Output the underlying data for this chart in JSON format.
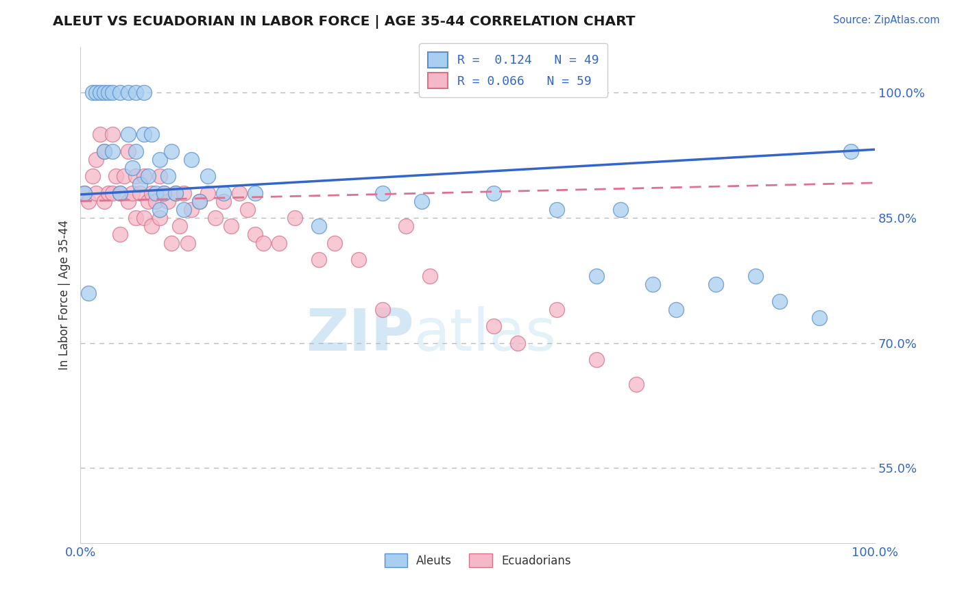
{
  "title": "ALEUT VS ECUADORIAN IN LABOR FORCE | AGE 35-44 CORRELATION CHART",
  "source_text": "Source: ZipAtlas.com",
  "ylabel": "In Labor Force | Age 35-44",
  "watermark_zip": "ZIP",
  "watermark_atlas": "atlas",
  "xmin": 0.0,
  "xmax": 1.0,
  "ymin": 0.46,
  "ymax": 1.055,
  "yticks": [
    0.55,
    0.7,
    0.85,
    1.0
  ],
  "ytick_labels": [
    "55.0%",
    "70.0%",
    "85.0%",
    "100.0%"
  ],
  "xtick_labels": [
    "0.0%",
    "100.0%"
  ],
  "aleut_R": 0.124,
  "aleut_N": 49,
  "ecuadorian_R": 0.066,
  "ecuadorian_N": 59,
  "aleut_color": "#A8CEF0",
  "ecuadorian_color": "#F5B8C8",
  "aleut_edge_color": "#5A8FCC",
  "ecuadorian_edge_color": "#D8708A",
  "aleut_line_color": "#3366CC",
  "ecuadorian_line_color": "#E07090",
  "text_blue": "#3366CC",
  "aleut_line_start_y": 0.878,
  "aleut_line_end_y": 0.932,
  "ecu_line_start_y": 0.87,
  "ecu_line_end_y": 0.892,
  "aleut_x": [
    0.005,
    0.01,
    0.015,
    0.02,
    0.025,
    0.03,
    0.03,
    0.035,
    0.04,
    0.04,
    0.05,
    0.05,
    0.06,
    0.06,
    0.065,
    0.07,
    0.07,
    0.075,
    0.08,
    0.08,
    0.085,
    0.09,
    0.095,
    0.1,
    0.1,
    0.105,
    0.11,
    0.115,
    0.12,
    0.13,
    0.14,
    0.15,
    0.16,
    0.18,
    0.22,
    0.3,
    0.38,
    0.43,
    0.52,
    0.6,
    0.65,
    0.68,
    0.72,
    0.75,
    0.8,
    0.85,
    0.88,
    0.93,
    0.97
  ],
  "aleut_y": [
    0.88,
    0.76,
    1.0,
    1.0,
    1.0,
    1.0,
    0.93,
    1.0,
    1.0,
    0.93,
    1.0,
    0.88,
    1.0,
    0.95,
    0.91,
    1.0,
    0.93,
    0.89,
    1.0,
    0.95,
    0.9,
    0.95,
    0.88,
    0.92,
    0.86,
    0.88,
    0.9,
    0.93,
    0.88,
    0.86,
    0.92,
    0.87,
    0.9,
    0.88,
    0.88,
    0.84,
    0.88,
    0.87,
    0.88,
    0.86,
    0.78,
    0.86,
    0.77,
    0.74,
    0.77,
    0.78,
    0.75,
    0.73,
    0.93
  ],
  "ecuadorian_x": [
    0.005,
    0.01,
    0.015,
    0.02,
    0.02,
    0.025,
    0.03,
    0.03,
    0.035,
    0.04,
    0.04,
    0.045,
    0.05,
    0.05,
    0.055,
    0.06,
    0.06,
    0.065,
    0.07,
    0.07,
    0.075,
    0.08,
    0.08,
    0.085,
    0.09,
    0.09,
    0.095,
    0.1,
    0.1,
    0.105,
    0.11,
    0.115,
    0.12,
    0.125,
    0.13,
    0.135,
    0.14,
    0.15,
    0.16,
    0.17,
    0.18,
    0.19,
    0.2,
    0.21,
    0.22,
    0.23,
    0.25,
    0.27,
    0.3,
    0.32,
    0.35,
    0.38,
    0.41,
    0.44,
    0.52,
    0.55,
    0.6,
    0.65,
    0.7
  ],
  "ecuadorian_y": [
    0.88,
    0.87,
    0.9,
    0.92,
    0.88,
    0.95,
    0.93,
    0.87,
    0.88,
    0.95,
    0.88,
    0.9,
    0.88,
    0.83,
    0.9,
    0.93,
    0.87,
    0.88,
    0.9,
    0.85,
    0.88,
    0.9,
    0.85,
    0.87,
    0.88,
    0.84,
    0.87,
    0.9,
    0.85,
    0.88,
    0.87,
    0.82,
    0.88,
    0.84,
    0.88,
    0.82,
    0.86,
    0.87,
    0.88,
    0.85,
    0.87,
    0.84,
    0.88,
    0.86,
    0.83,
    0.82,
    0.82,
    0.85,
    0.8,
    0.82,
    0.8,
    0.74,
    0.84,
    0.78,
    0.72,
    0.7,
    0.74,
    0.68,
    0.65
  ],
  "background_color": "#FFFFFF",
  "grid_color": "#BBBBBB"
}
